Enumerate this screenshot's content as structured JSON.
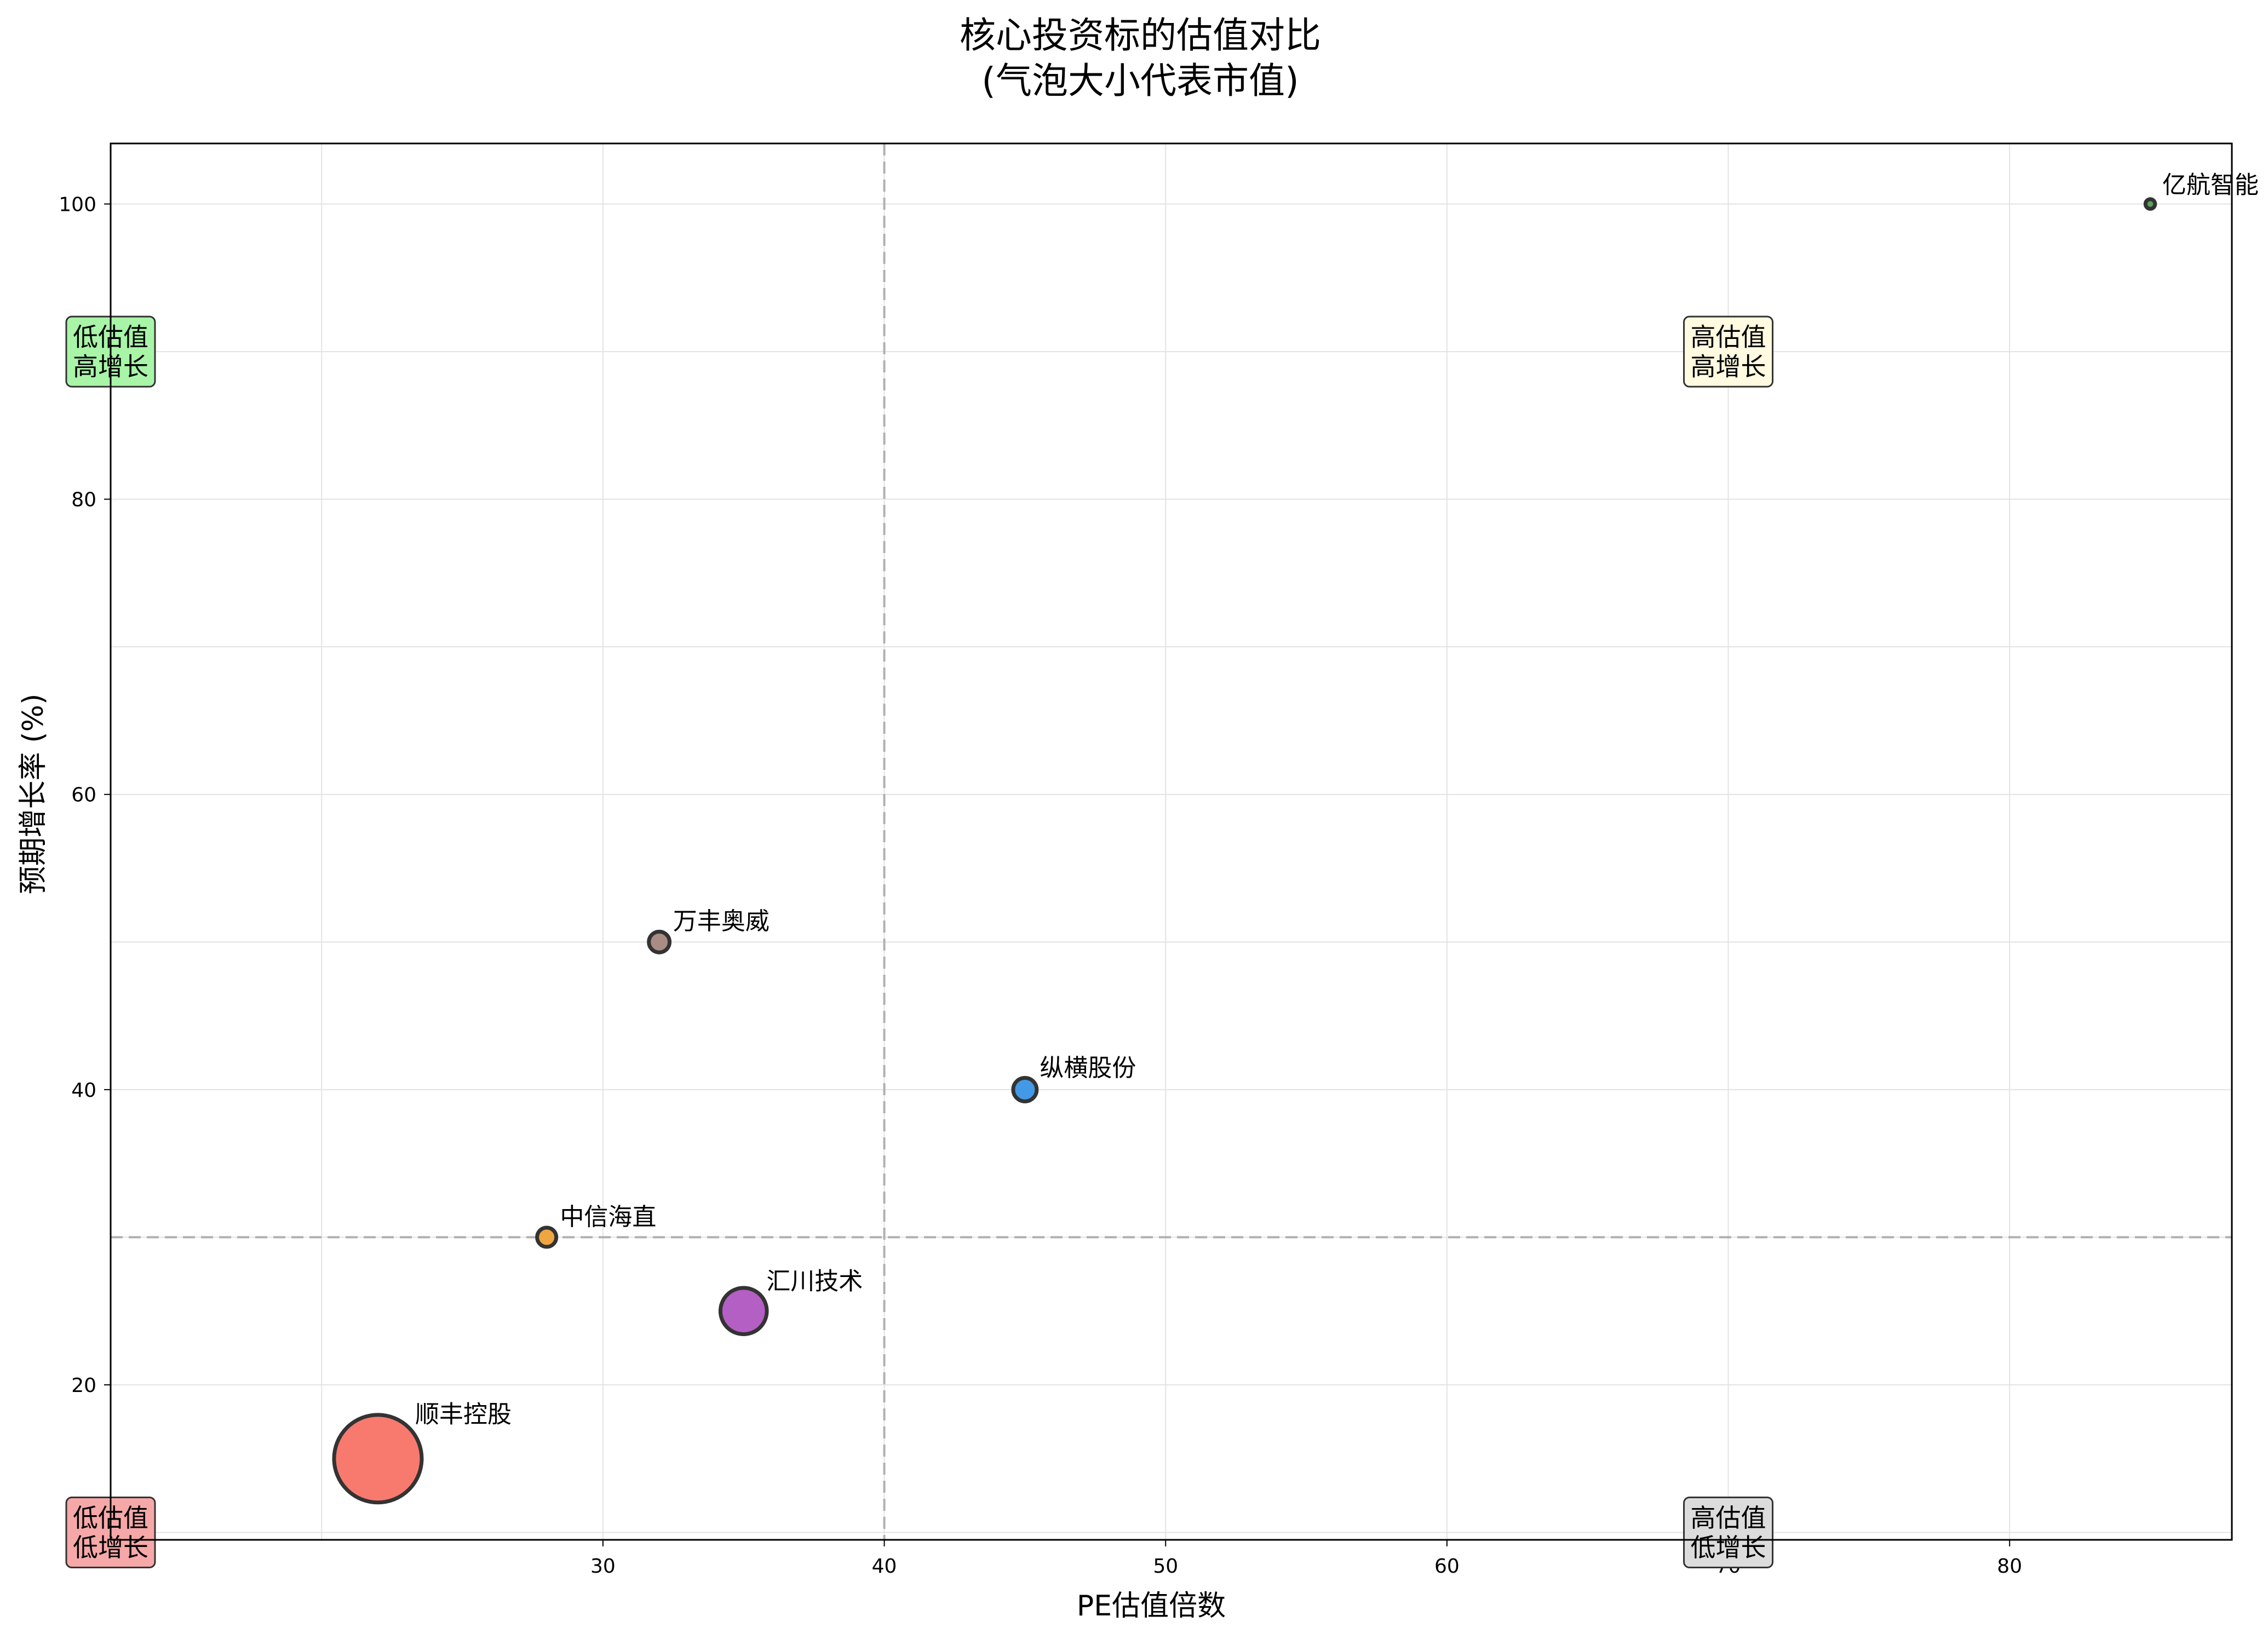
{
  "chart_data": {
    "type": "scatter",
    "title": "核心投资标的估值对比\n(气泡大小代表市值)",
    "xlabel": "PE估值倍数",
    "ylabel": "预期增长率 (%)",
    "xlim": [
      12.5,
      87.9
    ],
    "ylim": [
      9.5,
      104.1
    ],
    "x_ticks": [
      30,
      40,
      50,
      60,
      70,
      80
    ],
    "x_tick_labels": [
      "30",
      "40",
      "50",
      "60",
      "70",
      "80"
    ],
    "y_ticks": [
      20,
      40,
      60,
      80,
      100
    ],
    "y_tick_labels": [
      "20",
      "40",
      "60",
      "80",
      "100"
    ],
    "grid": true,
    "reference_lines": {
      "x": 40,
      "y": 30
    },
    "bubble_size_meaning": "市值",
    "points": [
      {
        "name": "顺丰控股",
        "x": 22,
        "y": 15,
        "size": 2500,
        "color": "#f87a6f"
      },
      {
        "name": "汇川技术",
        "x": 35,
        "y": 25,
        "size": 700,
        "color": "#b45fc4"
      },
      {
        "name": "中信海直",
        "x": 28,
        "y": 30,
        "size": 120,
        "color": "#f0a640"
      },
      {
        "name": "纵横股份",
        "x": 45,
        "y": 40,
        "size": 180,
        "color": "#4499e6"
      },
      {
        "name": "万丰奥威",
        "x": 32,
        "y": 50,
        "size": 140,
        "color": "#a98c84"
      },
      {
        "name": "亿航智能",
        "x": 85,
        "y": 100,
        "size": 30,
        "color": "#5aa45a"
      }
    ],
    "quadrant_labels": [
      {
        "text": "低估值\n高增长",
        "x": 12.5,
        "y": 90,
        "color": "#a8f5a8"
      },
      {
        "text": "高估值\n高增长",
        "x": 70,
        "y": 90,
        "color": "#fffae0"
      },
      {
        "text": "低估值\n低增长",
        "x": 12.5,
        "y": 10,
        "color": "#f6a8a8"
      },
      {
        "text": "高估值\n低增长",
        "x": 70,
        "y": 10,
        "color": "#dcdcdc"
      }
    ]
  }
}
